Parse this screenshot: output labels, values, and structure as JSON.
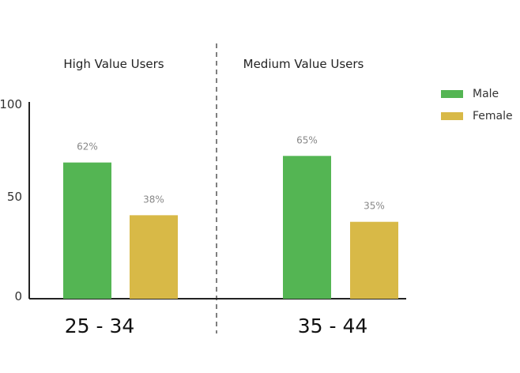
{
  "chart_data": {
    "type": "bar",
    "panels": [
      {
        "title": "High Value Users",
        "category": "25 - 34"
      },
      {
        "title": "Medium Value Users",
        "category": "35 - 44"
      }
    ],
    "series": [
      {
        "name": "Male",
        "color": "#54b553",
        "values": [
          62,
          65
        ],
        "labels": [
          "62%",
          "65%"
        ]
      },
      {
        "name": "Female",
        "color": "#d8b947",
        "values": [
          38,
          35
        ],
        "labels": [
          "38%",
          "35%"
        ]
      }
    ],
    "y_ticks": [
      "100",
      "50",
      "0"
    ],
    "ylim": [
      0,
      100
    ],
    "legend_position": "top-right",
    "grid": false
  }
}
